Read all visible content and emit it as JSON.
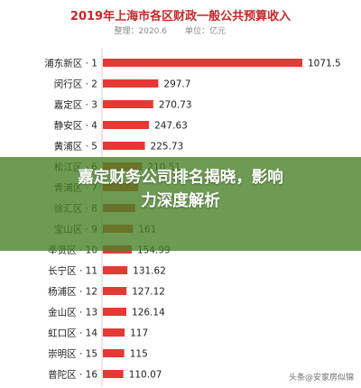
{
  "chart_data": {
    "type": "bar",
    "orientation": "horizontal",
    "title": "2019年上海市各区财政一般公共预算收入",
    "subtitle": "整理：2020.6",
    "unit_label": "单位：亿元",
    "categories": [
      "浦东新区 · 1",
      "闵行区 · 2",
      "嘉定区 · 3",
      "静安区 · 4",
      "黄浦区 · 5",
      "松江区 · 6",
      "青浦区 · 7",
      "徐汇区 · 8",
      "宝山区 · 9",
      "奉贤区 · 10",
      "长宁区 · 11",
      "杨浦区 · 12",
      "金山区 · 13",
      "虹口区 · 14",
      "崇明区 · 15",
      "普陀区 · 16"
    ],
    "values": [
      1071.5,
      297.7,
      270.73,
      247.63,
      225.73,
      210.51,
      190.2,
      175.6,
      161,
      154.99,
      131.62,
      127.12,
      126.14,
      117,
      115,
      110.07
    ],
    "value_labels": [
      "1071.5",
      "297.7",
      "270.73",
      "247.63",
      "225.73",
      "210.51",
      "",
      "",
      "161",
      "154.99",
      "131.62",
      "127.12",
      "126.14",
      "117",
      "115",
      "110.07"
    ],
    "xlim": [
      0,
      1071.5
    ],
    "grid": false,
    "bar_color": "#e53935"
  },
  "overlay": {
    "headline_line1": "嘉定财务公司排名揭晓，影响",
    "headline_line2": "力深度解析",
    "banner_color": "#4a8228"
  },
  "watermark": "头条@安家房似锦"
}
